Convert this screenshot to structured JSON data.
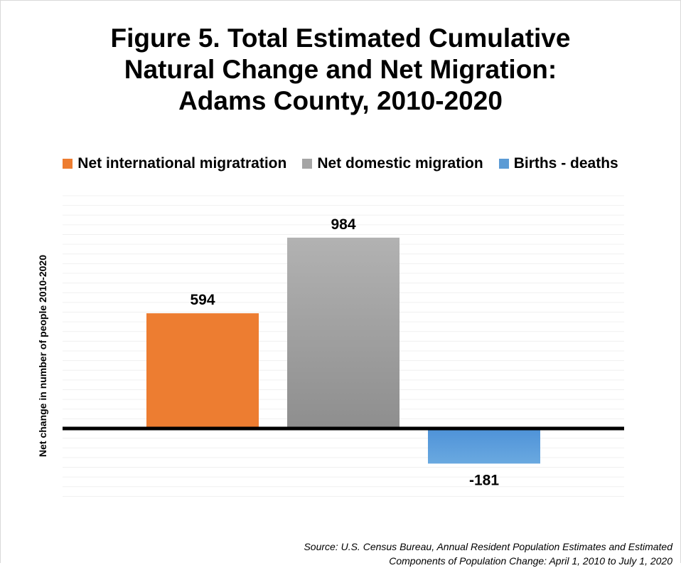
{
  "chart_data": {
    "type": "bar",
    "title_lines": [
      "Figure 5. Total Estimated Cumulative",
      "Natural Change and Net Migration:",
      "Adams County, 2010-2020"
    ],
    "ylabel": "Net change in number of people 2010-2020",
    "xlabel": "",
    "ylim": [
      -380,
      1200
    ],
    "legend_position": "top",
    "grid": true,
    "series": [
      {
        "name": "Net international migratration",
        "value": 594,
        "label": "594",
        "color": "#ED7D31"
      },
      {
        "name": "Net domestic migration",
        "value": 984,
        "label": "984",
        "color": "#A5A5A5"
      },
      {
        "name": "Births  - deaths",
        "value": -181,
        "label": "-181",
        "color": "#5B9BD5"
      }
    ]
  },
  "source_lines": [
    "Source: U.S. Census Bureau, Annual Resident Population Estimates and Estimated",
    "Components of Population Change: April 1, 2010 to July 1, 2020"
  ]
}
